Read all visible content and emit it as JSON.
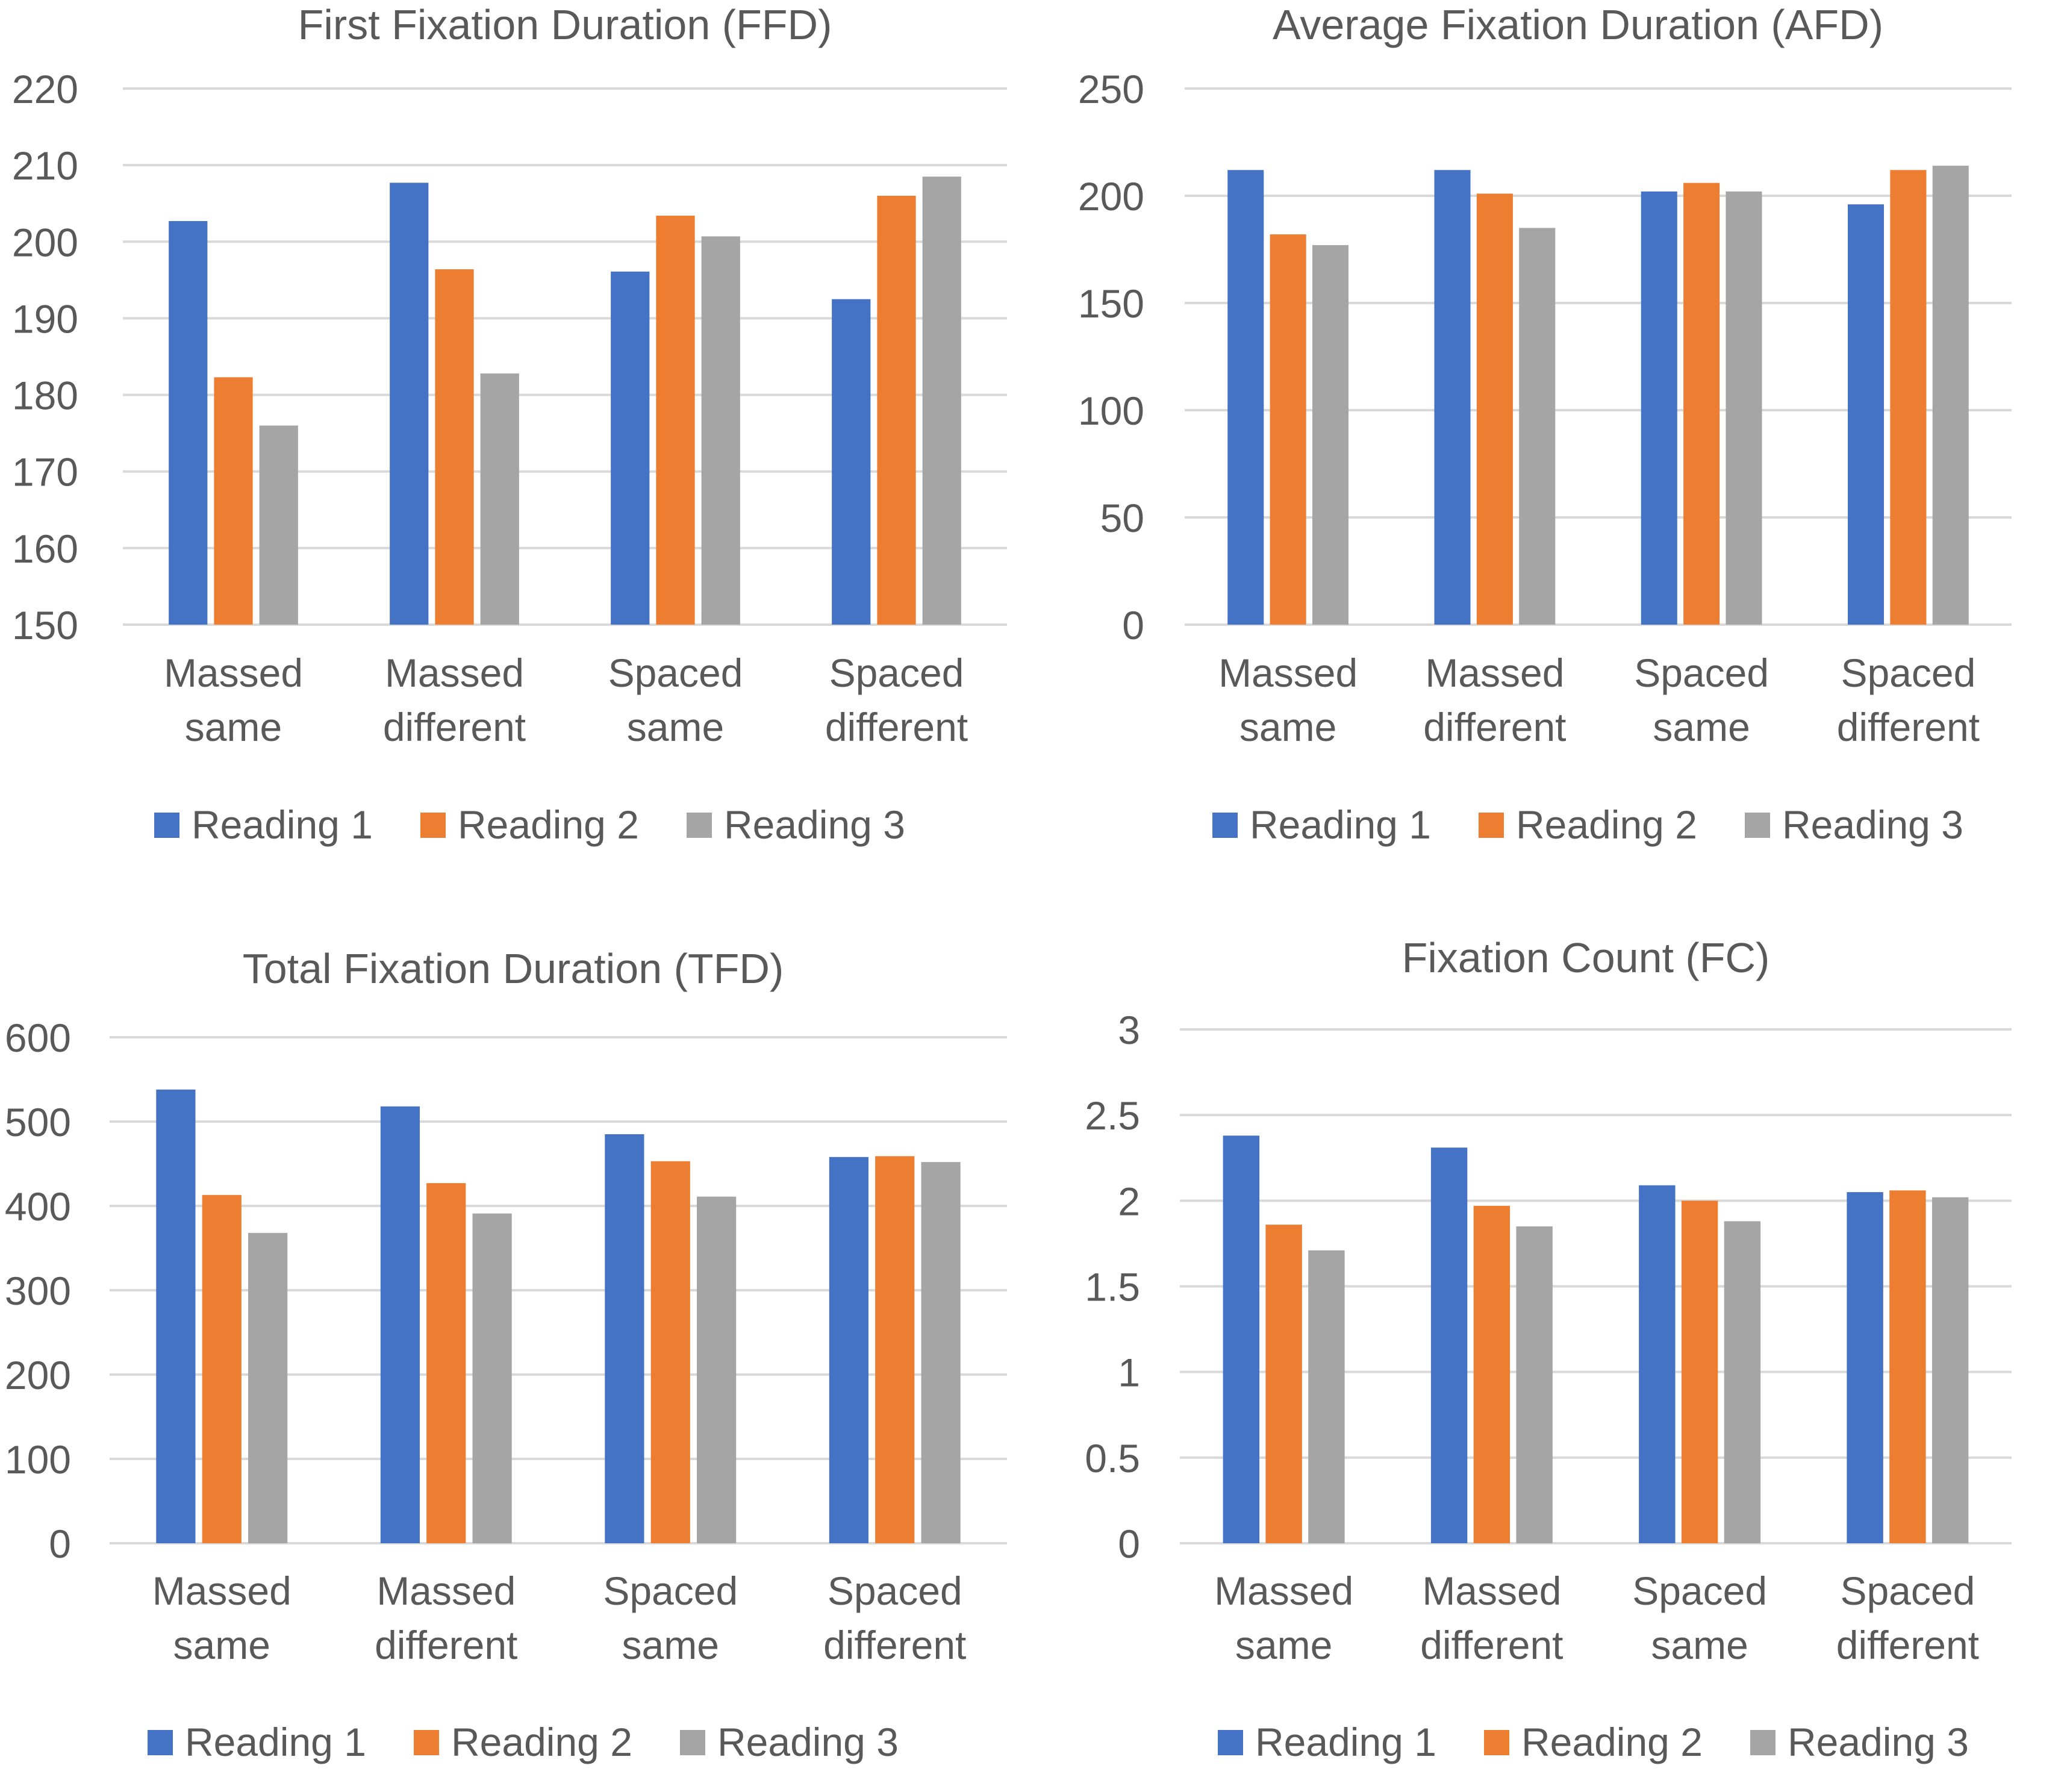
{
  "chart_data": [
    {
      "type": "bar",
      "title": "First Fixation Duration (FFD)",
      "categories": [
        [
          "Massed",
          "same"
        ],
        [
          "Massed",
          "different"
        ],
        [
          "Spaced",
          "same"
        ],
        [
          "Spaced",
          "different"
        ]
      ],
      "series": [
        {
          "name": "Reading 1",
          "values": [
            202.7,
            207.7,
            196.1,
            192.5
          ]
        },
        {
          "name": "Reading 2",
          "values": [
            182.3,
            196.4,
            203.4,
            206.0
          ]
        },
        {
          "name": "Reading 3",
          "values": [
            176.0,
            182.8,
            200.7,
            208.5
          ]
        }
      ],
      "ylim": [
        150,
        220
      ],
      "yticks": [
        150,
        160,
        170,
        180,
        190,
        200,
        210,
        220
      ],
      "xlabel": "",
      "ylabel": "",
      "grid": true,
      "legend_position": "bottom"
    },
    {
      "type": "bar",
      "title": "Average Fixation Duration (AFD)",
      "categories": [
        [
          "Massed",
          "same"
        ],
        [
          "Massed",
          "different"
        ],
        [
          "Spaced",
          "same"
        ],
        [
          "Spaced",
          "different"
        ]
      ],
      "series": [
        {
          "name": "Reading 1",
          "values": [
            212,
            212,
            202,
            196
          ]
        },
        {
          "name": "Reading 2",
          "values": [
            182,
            201,
            206,
            212
          ]
        },
        {
          "name": "Reading 3",
          "values": [
            177,
            185,
            202,
            214
          ]
        }
      ],
      "ylim": [
        0,
        250
      ],
      "yticks": [
        0,
        50,
        100,
        150,
        200,
        250
      ],
      "xlabel": "",
      "ylabel": "",
      "grid": true,
      "legend_position": "bottom"
    },
    {
      "type": "bar",
      "title": "Total Fixation Duration (TFD)",
      "categories": [
        [
          "Massed",
          "same"
        ],
        [
          "Massed",
          "different"
        ],
        [
          "Spaced",
          "same"
        ],
        [
          "Spaced",
          "different"
        ]
      ],
      "series": [
        {
          "name": "Reading 1",
          "values": [
            538,
            518,
            485,
            458
          ]
        },
        {
          "name": "Reading 2",
          "values": [
            413,
            427,
            453,
            459
          ]
        },
        {
          "name": "Reading 3",
          "values": [
            368,
            391,
            411,
            452
          ]
        }
      ],
      "ylim": [
        0,
        600
      ],
      "yticks": [
        0,
        100,
        200,
        300,
        400,
        500,
        600
      ],
      "xlabel": "",
      "ylabel": "",
      "grid": true,
      "legend_position": "bottom"
    },
    {
      "type": "bar",
      "title": "Fixation Count (FC)",
      "categories": [
        [
          "Massed",
          "same"
        ],
        [
          "Massed",
          "different"
        ],
        [
          "Spaced",
          "same"
        ],
        [
          "Spaced",
          "different"
        ]
      ],
      "series": [
        {
          "name": "Reading 1",
          "values": [
            2.38,
            2.31,
            2.09,
            2.05
          ]
        },
        {
          "name": "Reading 2",
          "values": [
            1.86,
            1.97,
            2.0,
            2.06
          ]
        },
        {
          "name": "Reading 3",
          "values": [
            1.71,
            1.85,
            1.88,
            2.02
          ]
        }
      ],
      "ylim": [
        0,
        3
      ],
      "yticks": [
        "0",
        "0.5",
        "1",
        "1.5",
        "2",
        "2.5",
        "3"
      ],
      "xlabel": "",
      "ylabel": "",
      "grid": true,
      "legend_position": "bottom"
    }
  ],
  "colors": {
    "series": [
      "#4472C4",
      "#ED7D31",
      "#A5A5A5"
    ],
    "text": "#595959",
    "grid": "#D9D9D9"
  }
}
